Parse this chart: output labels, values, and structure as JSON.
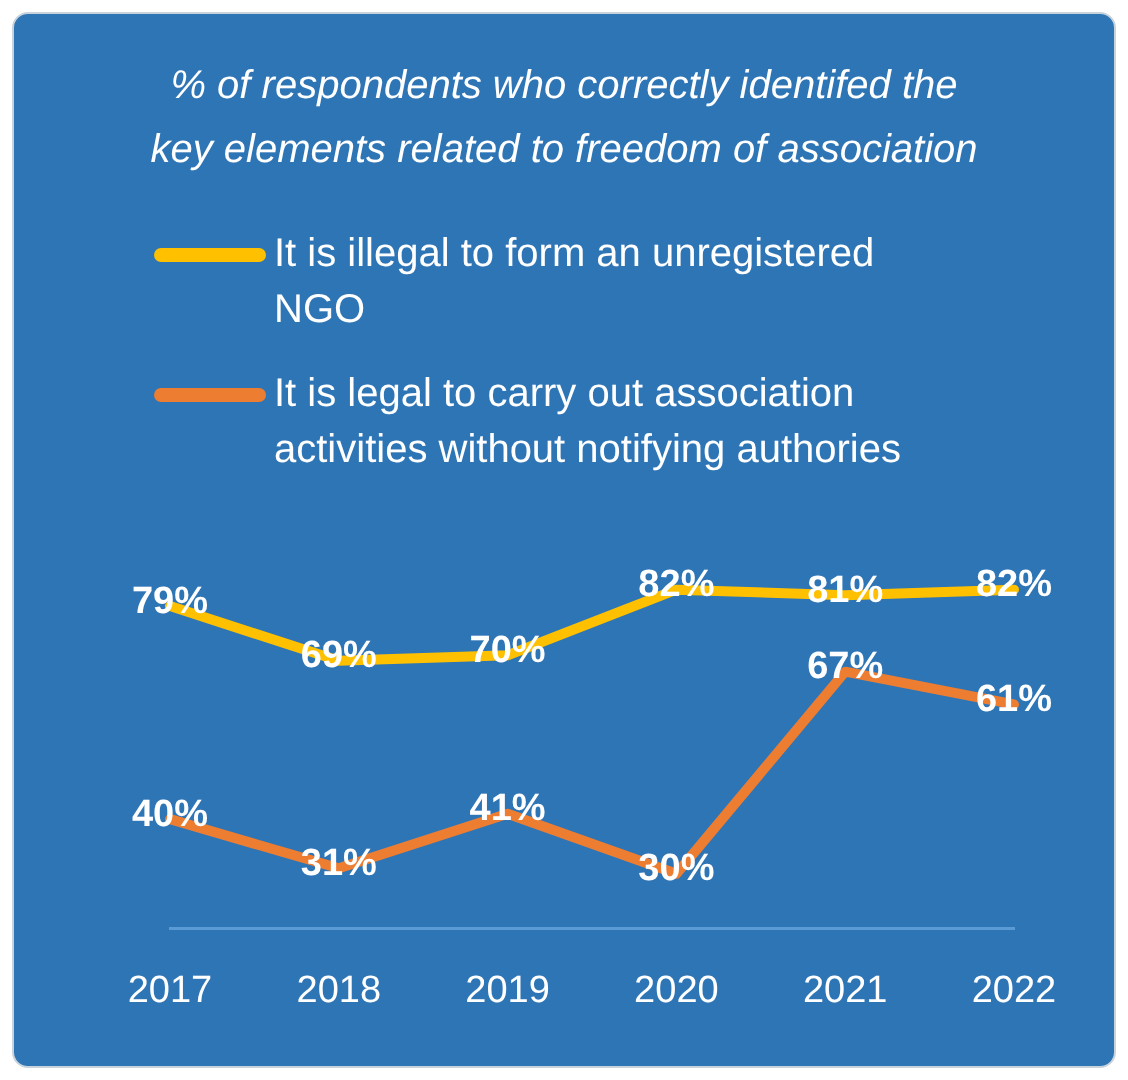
{
  "chart_data": {
    "type": "line",
    "title": "% of respondents who correctly identifed the key elements related to freedom of association",
    "categories": [
      "2017",
      "2018",
      "2019",
      "2020",
      "2021",
      "2022"
    ],
    "series": [
      {
        "name": "It is illegal to form an unregistered NGO",
        "color": "#ffc000",
        "values": [
          79,
          69,
          70,
          82,
          81,
          82
        ],
        "value_labels": [
          "79%",
          "69%",
          "70%",
          "82%",
          "81%",
          "82%"
        ]
      },
      {
        "name": "It is legal to carry out association activities without notifying authories",
        "color": "#ed7d31",
        "values": [
          40,
          31,
          41,
          30,
          67,
          61
        ],
        "value_labels": [
          "40%",
          "31%",
          "41%",
          "30%",
          "67%",
          "61%"
        ]
      }
    ],
    "legend": "top",
    "grid": false,
    "marker": "none",
    "line_style": "solid",
    "tick_labels": "x"
  }
}
